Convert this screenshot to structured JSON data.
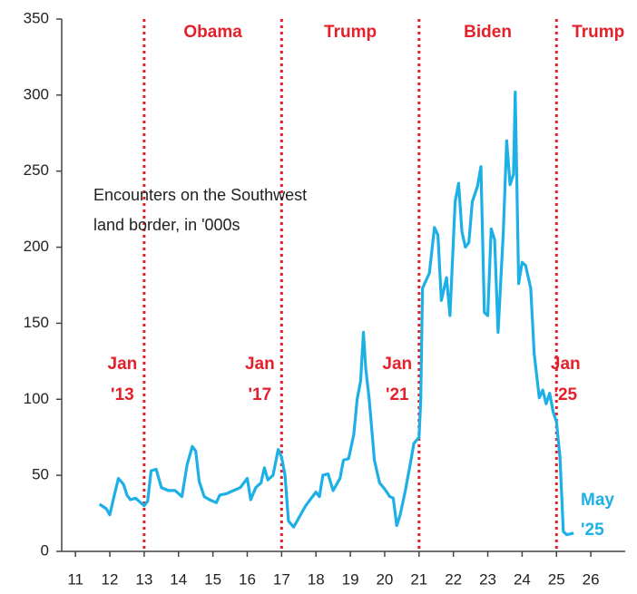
{
  "chart_data": {
    "type": "line",
    "annotation_lines": [
      "Encounters on the Southwest",
      "land border, in '000s"
    ],
    "end_label_lines": [
      "May",
      "'25"
    ],
    "xlim": [
      10.6,
      27
    ],
    "xticks": [
      11,
      12,
      13,
      14,
      15,
      16,
      17,
      18,
      19,
      20,
      21,
      22,
      23,
      24,
      25,
      26
    ],
    "ylim": [
      0,
      350
    ],
    "yticks": [
      0,
      50,
      100,
      150,
      200,
      250,
      300,
      350
    ],
    "vline_color": "#e4202a",
    "vlines": [
      {
        "x": 13,
        "label_lines": [
          "Jan",
          "'13"
        ]
      },
      {
        "x": 17,
        "label_lines": [
          "Jan",
          "'17"
        ]
      },
      {
        "x": 21,
        "label_lines": [
          "Jan",
          "'21"
        ]
      },
      {
        "x": 25,
        "label_lines": [
          "Jan",
          "'25"
        ]
      }
    ],
    "periods": [
      "Obama",
      "Trump",
      "Biden",
      "Trump"
    ],
    "series": [
      {
        "name": "Encounters",
        "color": "#1cb0e6",
        "x": [
          11.7,
          11.9,
          12.0,
          12.1,
          12.25,
          12.4,
          12.5,
          12.6,
          12.75,
          12.9,
          13.0,
          13.1,
          13.2,
          13.35,
          13.5,
          13.7,
          13.9,
          14.1,
          14.25,
          14.4,
          14.5,
          14.6,
          14.75,
          14.9,
          15.1,
          15.2,
          15.4,
          15.6,
          15.8,
          15.9,
          16.0,
          16.1,
          16.25,
          16.4,
          16.5,
          16.6,
          16.75,
          16.9,
          17.0,
          17.1,
          17.2,
          17.35,
          17.5,
          17.7,
          17.9,
          18.0,
          18.1,
          18.2,
          18.35,
          18.5,
          18.7,
          18.8,
          18.95,
          19.1,
          19.2,
          19.3,
          19.38,
          19.45,
          19.55,
          19.7,
          19.85,
          20.0,
          20.15,
          20.25,
          20.35,
          20.45,
          20.6,
          20.75,
          20.85,
          21.0,
          21.05,
          21.1,
          21.2,
          21.3,
          21.45,
          21.55,
          21.65,
          21.8,
          21.9,
          22.05,
          22.15,
          22.25,
          22.35,
          22.45,
          22.55,
          22.7,
          22.8,
          22.9,
          23.0,
          23.1,
          23.2,
          23.3,
          23.45,
          23.55,
          23.65,
          23.75,
          23.8,
          23.9,
          24.0,
          24.1,
          24.25,
          24.35,
          24.5,
          24.6,
          24.7,
          24.8,
          24.9,
          25.0,
          25.1,
          25.2,
          25.3,
          25.5
        ],
        "values": [
          31,
          28,
          24,
          34,
          48,
          44,
          37,
          34,
          35,
          32,
          30,
          33,
          53,
          54,
          42,
          40,
          40,
          36,
          57,
          69,
          66,
          46,
          36,
          34,
          32,
          37,
          38,
          40,
          42,
          45,
          48,
          34,
          42,
          45,
          55,
          47,
          50,
          67,
          62,
          50,
          20,
          16,
          22,
          30,
          36,
          39,
          36,
          50,
          51,
          40,
          48,
          60,
          61,
          77,
          100,
          112,
          144,
          120,
          100,
          60,
          45,
          41,
          36,
          35,
          17,
          24,
          40,
          58,
          71,
          75,
          100,
          173,
          178,
          183,
          213,
          208,
          165,
          180,
          155,
          230,
          242,
          210,
          200,
          203,
          230,
          240,
          253,
          157,
          155,
          212,
          205,
          144,
          209,
          270,
          241,
          248,
          302,
          176,
          190,
          188,
          173,
          130,
          101,
          106,
          97,
          104,
          92,
          85,
          62,
          13,
          11,
          12
        ]
      }
    ]
  }
}
